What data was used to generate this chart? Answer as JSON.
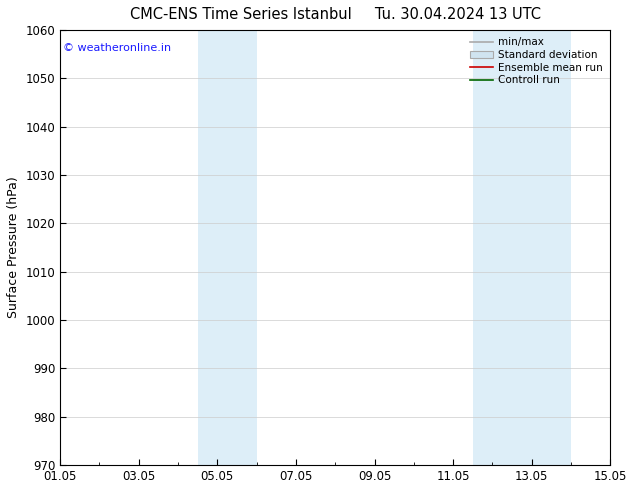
{
  "title": "CMC-ENS Time Series Istanbul     Tu. 30.04.2024 13 UTC",
  "ylabel": "Surface Pressure (hPa)",
  "ylim": [
    970,
    1060
  ],
  "yticks": [
    970,
    980,
    990,
    1000,
    1010,
    1020,
    1030,
    1040,
    1050,
    1060
  ],
  "xlim": [
    0,
    14
  ],
  "xtick_labels": [
    "01.05",
    "03.05",
    "05.05",
    "07.05",
    "09.05",
    "11.05",
    "13.05",
    "15.05"
  ],
  "xtick_positions": [
    0,
    2,
    4,
    6,
    8,
    10,
    12,
    14
  ],
  "minor_xtick_positions": [
    0,
    1,
    2,
    3,
    4,
    5,
    6,
    7,
    8,
    9,
    10,
    11,
    12,
    13,
    14
  ],
  "blue_bands": [
    {
      "x_start": 3.5,
      "x_end": 5.0
    },
    {
      "x_start": 10.5,
      "x_end": 13.0
    }
  ],
  "watermark_text": "© weatheronline.in",
  "watermark_color": "#1a1aff",
  "legend_items": [
    {
      "label": "min/max",
      "type": "line",
      "color": "#aaaaaa",
      "lw": 1.2
    },
    {
      "label": "Standard deviation",
      "type": "patch",
      "facecolor": "#d0e4f0",
      "edgecolor": "#aaaaaa"
    },
    {
      "label": "Ensemble mean run",
      "type": "line",
      "color": "#cc0000",
      "lw": 1.2
    },
    {
      "label": "Controll run",
      "type": "line",
      "color": "#006600",
      "lw": 1.2
    }
  ],
  "background_color": "#ffffff",
  "band_color": "#ddeef8",
  "title_fontsize": 10.5,
  "axis_fontsize": 9,
  "tick_fontsize": 8.5,
  "watermark_fontsize": 8
}
